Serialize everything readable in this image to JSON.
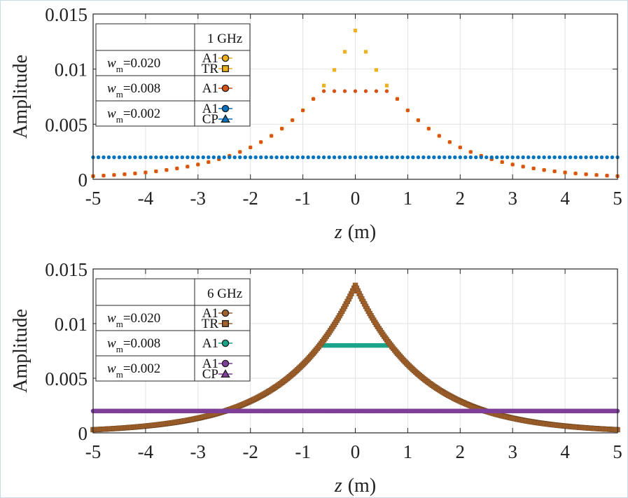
{
  "chart_data": [
    {
      "type": "scatter",
      "style": "dotted",
      "xlabel_var": "z",
      "xlabel_unit": "(m)",
      "ylabel": "Amplitude",
      "xlim": [
        -5,
        5
      ],
      "ylim": [
        0,
        0.015
      ],
      "xticks": [
        -5,
        -4,
        -3,
        -2,
        -1,
        0,
        1,
        2,
        3,
        4,
        5
      ],
      "yticks": [
        0,
        0.005,
        0.01,
        0.015
      ],
      "ytick_labels": [
        "0",
        "0.005",
        "0.01",
        "0.015"
      ],
      "grid": true,
      "legend": {
        "position": "top-left",
        "header": "1 GHz",
        "rows": [
          {
            "w_sym": "w",
            "w_sub": "m",
            "w_val": "=0.020",
            "entries": [
              {
                "label": "A1",
                "marker": "circle",
                "color": "#EDB120"
              },
              {
                "label": "TR",
                "marker": "square",
                "color": "#EDB120"
              }
            ]
          },
          {
            "w_sym": "w",
            "w_sub": "m",
            "w_val": "=0.008",
            "entries": [
              {
                "label": "A1",
                "marker": "circle",
                "color": "#D95319"
              }
            ]
          },
          {
            "w_sym": "w",
            "w_sub": "m",
            "w_val": "=0.002",
            "entries": [
              {
                "label": "A1",
                "marker": "circle",
                "color": "#0072BD"
              },
              {
                "label": "CP",
                "marker": "triangle",
                "color": "#0072BD"
              }
            ]
          }
        ]
      },
      "series": [
        {
          "name": "w=0.020",
          "shape": "laplace",
          "peak": 0.0135,
          "decay": 1.3,
          "color": "#EDB120",
          "marker": "square",
          "dz": 0.2
        },
        {
          "name": "w=0.008",
          "shape": "clipped_laplace",
          "peak": 0.0135,
          "decay": 1.3,
          "clip": 0.008,
          "color": "#D95319",
          "marker": "circle",
          "dz": 0.2
        },
        {
          "name": "w=0.002",
          "shape": "constant",
          "value": 0.002,
          "color": "#0072BD",
          "marker": "circle",
          "dz": 0.1
        }
      ]
    },
    {
      "type": "line",
      "style": "dense",
      "xlabel_var": "z",
      "xlabel_unit": "(m)",
      "ylabel": "Amplitude",
      "xlim": [
        -5,
        5
      ],
      "ylim": [
        0,
        0.015
      ],
      "xticks": [
        -5,
        -4,
        -3,
        -2,
        -1,
        0,
        1,
        2,
        3,
        4,
        5
      ],
      "yticks": [
        0,
        0.005,
        0.01,
        0.015
      ],
      "ytick_labels": [
        "0",
        "0.005",
        "0.01",
        "0.015"
      ],
      "grid": true,
      "legend": {
        "position": "top-left",
        "header": "6 GHz",
        "rows": [
          {
            "w_sym": "w",
            "w_sub": "m",
            "w_val": "=0.020",
            "entries": [
              {
                "label": "A1",
                "marker": "circle",
                "color": "#A2622C"
              },
              {
                "label": "TR",
                "marker": "square",
                "color": "#A2622C"
              }
            ]
          },
          {
            "w_sym": "w",
            "w_sub": "m",
            "w_val": "=0.008",
            "entries": [
              {
                "label": "A1",
                "marker": "circle",
                "color": "#1AA58A"
              }
            ]
          },
          {
            "w_sym": "w",
            "w_sub": "m",
            "w_val": "=0.002",
            "entries": [
              {
                "label": "A1",
                "marker": "circle",
                "color": "#7E3F98"
              },
              {
                "label": "CP",
                "marker": "triangle",
                "color": "#7E3F98"
              }
            ]
          }
        ]
      },
      "series": [
        {
          "name": "w=0.008",
          "shape": "clipped_laplace",
          "peak": 0.0135,
          "decay": 1.3,
          "clip": 0.008,
          "color": "#1AA58A",
          "marker": "circle",
          "dz": 0.025
        },
        {
          "name": "w=0.020",
          "shape": "laplace",
          "peak": 0.0135,
          "decay": 1.3,
          "color": "#A2622C",
          "marker": "square",
          "dz": 0.025
        },
        {
          "name": "w=0.002",
          "shape": "constant",
          "value": 0.002,
          "color": "#7E3F98",
          "marker": "circle",
          "dz": 0.025
        }
      ]
    }
  ]
}
